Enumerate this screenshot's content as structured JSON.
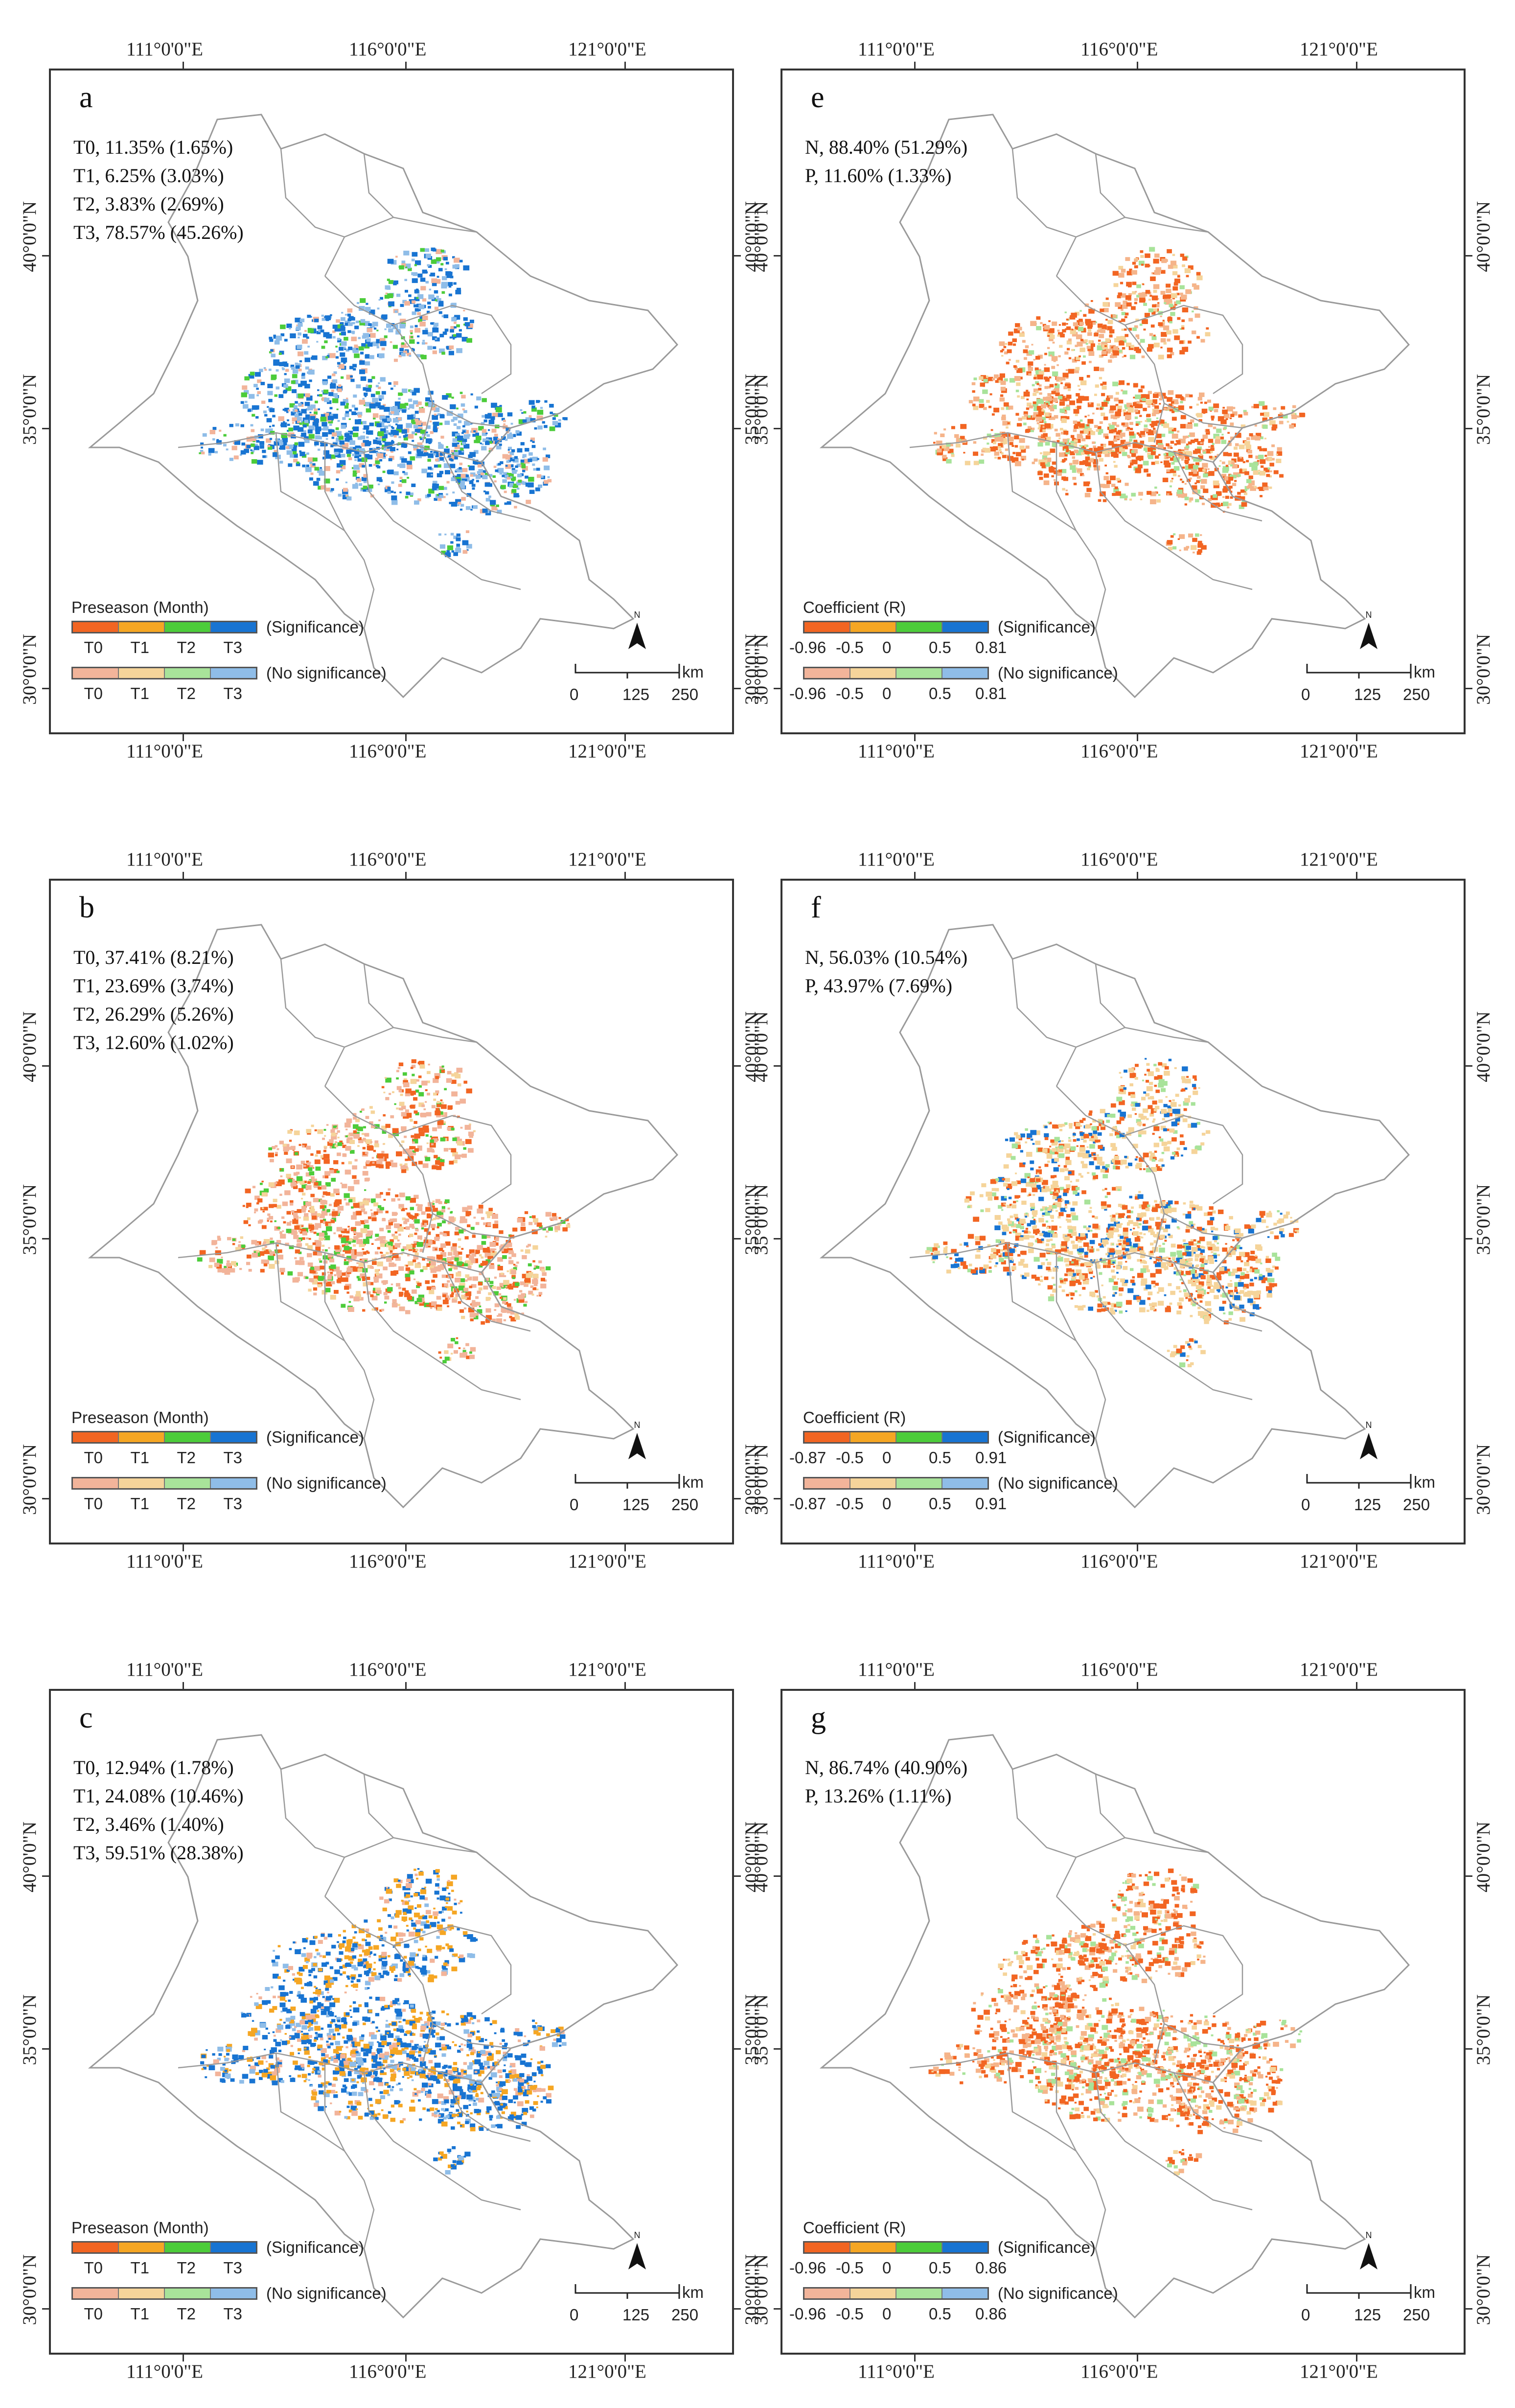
{
  "axes": {
    "lon_labels": [
      "111°0'0\"E",
      "116°0'0\"E",
      "121°0'0\"E"
    ],
    "lat_labels": [
      "40°0'0\"N",
      "35°0'0\"N",
      "30°0'0\"N"
    ]
  },
  "north_arrow": "N",
  "scale": {
    "unit": "km",
    "ticks": [
      "0",
      "125",
      "250"
    ]
  },
  "colors": {
    "sig": [
      "#f26522",
      "#f5a623",
      "#4ccc3a",
      "#1874d2"
    ],
    "nosig": [
      "#f2b49a",
      "#f5d49a",
      "#a8e39a",
      "#8fbde8"
    ],
    "boundary": "#9a9a9a"
  },
  "panels": [
    {
      "letter": "a",
      "type": "preseason",
      "stats": [
        "T0, 11.35% (1.65%)",
        "T1, 6.25% (3.03%)",
        "T2, 3.83% (2.69%)",
        "T3, 78.57% (45.26%)"
      ],
      "legend_title": "Preseason (Month)",
      "row1": [
        "T0",
        "T1",
        "T2",
        "T3"
      ],
      "row2": [
        "T0",
        "T1",
        "T2",
        "T3"
      ],
      "sig_label": "(Significance)",
      "nosig_label": "(No significance)",
      "palette": {
        "main": "#1874d2",
        "second": "#8fbde8",
        "third": "#f2b49a",
        "fourth": "#4ccc3a"
      }
    },
    {
      "letter": "e",
      "type": "coefficient",
      "stats": [
        "N, 88.40% (51.29%)",
        "P, 11.60% (1.33%)"
      ],
      "legend_title": "Coefficient (R)",
      "row1": [
        "-0.96",
        "-0.5",
        "0",
        "0.5",
        "0.81"
      ],
      "row2": [
        "-0.96",
        "-0.5",
        "0",
        "0.5",
        "0.81"
      ],
      "sig_label": "(Significance)",
      "nosig_label": "(No significance)",
      "palette": {
        "main": "#f26522",
        "second": "#f5b48a",
        "third": "#f5d49a",
        "fourth": "#a8e39a"
      }
    },
    {
      "letter": "b",
      "type": "preseason",
      "stats": [
        "T0, 37.41% (8.21%)",
        "T1, 23.69% (3.74%)",
        "T2, 26.29% (5.26%)",
        "T3, 12.60% (1.02%)"
      ],
      "legend_title": "Preseason (Month)",
      "row1": [
        "T0",
        "T1",
        "T2",
        "T3"
      ],
      "row2": [
        "T0",
        "T1",
        "T2",
        "T3"
      ],
      "sig_label": "(Significance)",
      "nosig_label": "(No significance)",
      "palette": {
        "main": "#f2b49a",
        "second": "#f26522",
        "third": "#4ccc3a",
        "fourth": "#f5d49a"
      }
    },
    {
      "letter": "f",
      "type": "coefficient",
      "stats": [
        "N, 56.03% (10.54%)",
        "P, 43.97% (7.69%)"
      ],
      "legend_title": "Coefficient (R)",
      "row1": [
        "-0.87",
        "-0.5",
        "0",
        "0.5",
        "0.91"
      ],
      "row2": [
        "-0.87",
        "-0.5",
        "0",
        "0.5",
        "0.91"
      ],
      "sig_label": "(Significance)",
      "nosig_label": "(No significance)",
      "palette": {
        "main": "#f5d49a",
        "second": "#f26522",
        "third": "#a8e39a",
        "fourth": "#1874d2"
      }
    },
    {
      "letter": "c",
      "type": "preseason",
      "stats": [
        "T0, 12.94% (1.78%)",
        "T1, 24.08% (10.46%)",
        "T2, 3.46% (1.40%)",
        "T3, 59.51% (28.38%)"
      ],
      "legend_title": "Preseason (Month)",
      "row1": [
        "T0",
        "T1",
        "T2",
        "T3"
      ],
      "row2": [
        "T0",
        "T1",
        "T2",
        "T3"
      ],
      "sig_label": "(Significance)",
      "nosig_label": "(No significance)",
      "palette": {
        "main": "#1874d2",
        "second": "#f5a623",
        "third": "#8fbde8",
        "fourth": "#f2b49a"
      }
    },
    {
      "letter": "g",
      "type": "coefficient",
      "stats": [
        "N, 86.74% (40.90%)",
        "P, 13.26% (1.11%)"
      ],
      "legend_title": "Coefficient (R)",
      "row1": [
        "-0.96",
        "-0.5",
        "0",
        "0.5",
        "0.86"
      ],
      "row2": [
        "-0.96",
        "-0.5",
        "0",
        "0.5",
        "0.86"
      ],
      "sig_label": "(Significance)",
      "nosig_label": "(No significance)",
      "palette": {
        "main": "#f26522",
        "second": "#f5b48a",
        "third": "#f5d49a",
        "fourth": "#a8e39a"
      }
    }
  ]
}
